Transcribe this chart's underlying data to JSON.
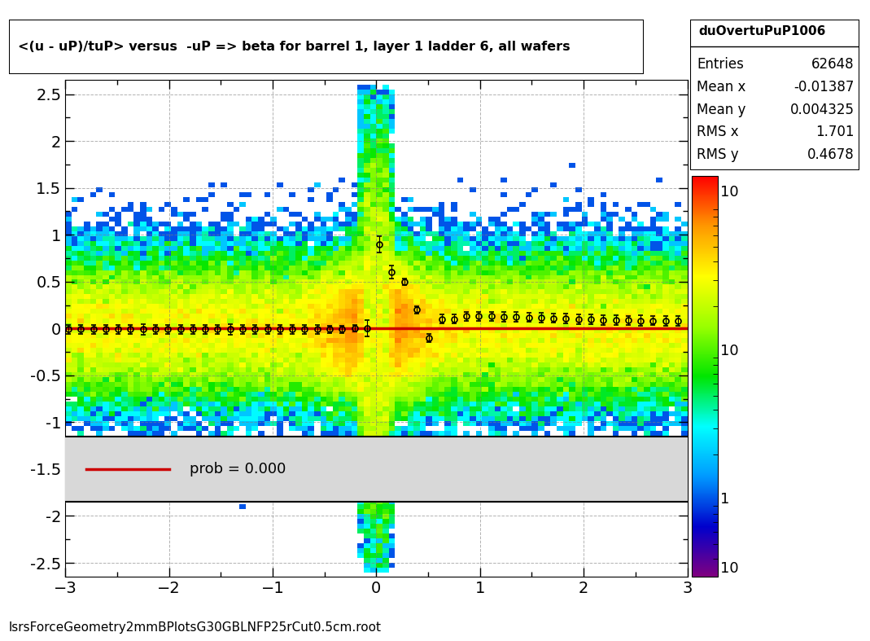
{
  "title": "<(u - uP)/tuP> versus  -uP => beta for barrel 1, layer 1 ladder 6, all wafers",
  "stats_name": "duOvertuPuP1006",
  "entries": 62648,
  "mean_x": -0.01387,
  "mean_y": 0.004325,
  "rms_x": 1.701,
  "rms_y": 0.4678,
  "xlim": [
    -3.0,
    3.0
  ],
  "ylim": [
    -2.6,
    2.6
  ],
  "colorbar_min": 0.3,
  "colorbar_max": 150,
  "prob_label": "prob = 0.000",
  "bottom_label": "lsrsForceGeometry2mmBPlotsG30GBLNFP25rCut0.5cm.root",
  "background_color": "#ffffff",
  "fit_line_color": "#cc0000",
  "profile_color": "black",
  "gray_area_color": "#d8d8d8",
  "grid_color": "#808080",
  "n_xbins": 100,
  "n_ybins": 100,
  "seed": 42
}
